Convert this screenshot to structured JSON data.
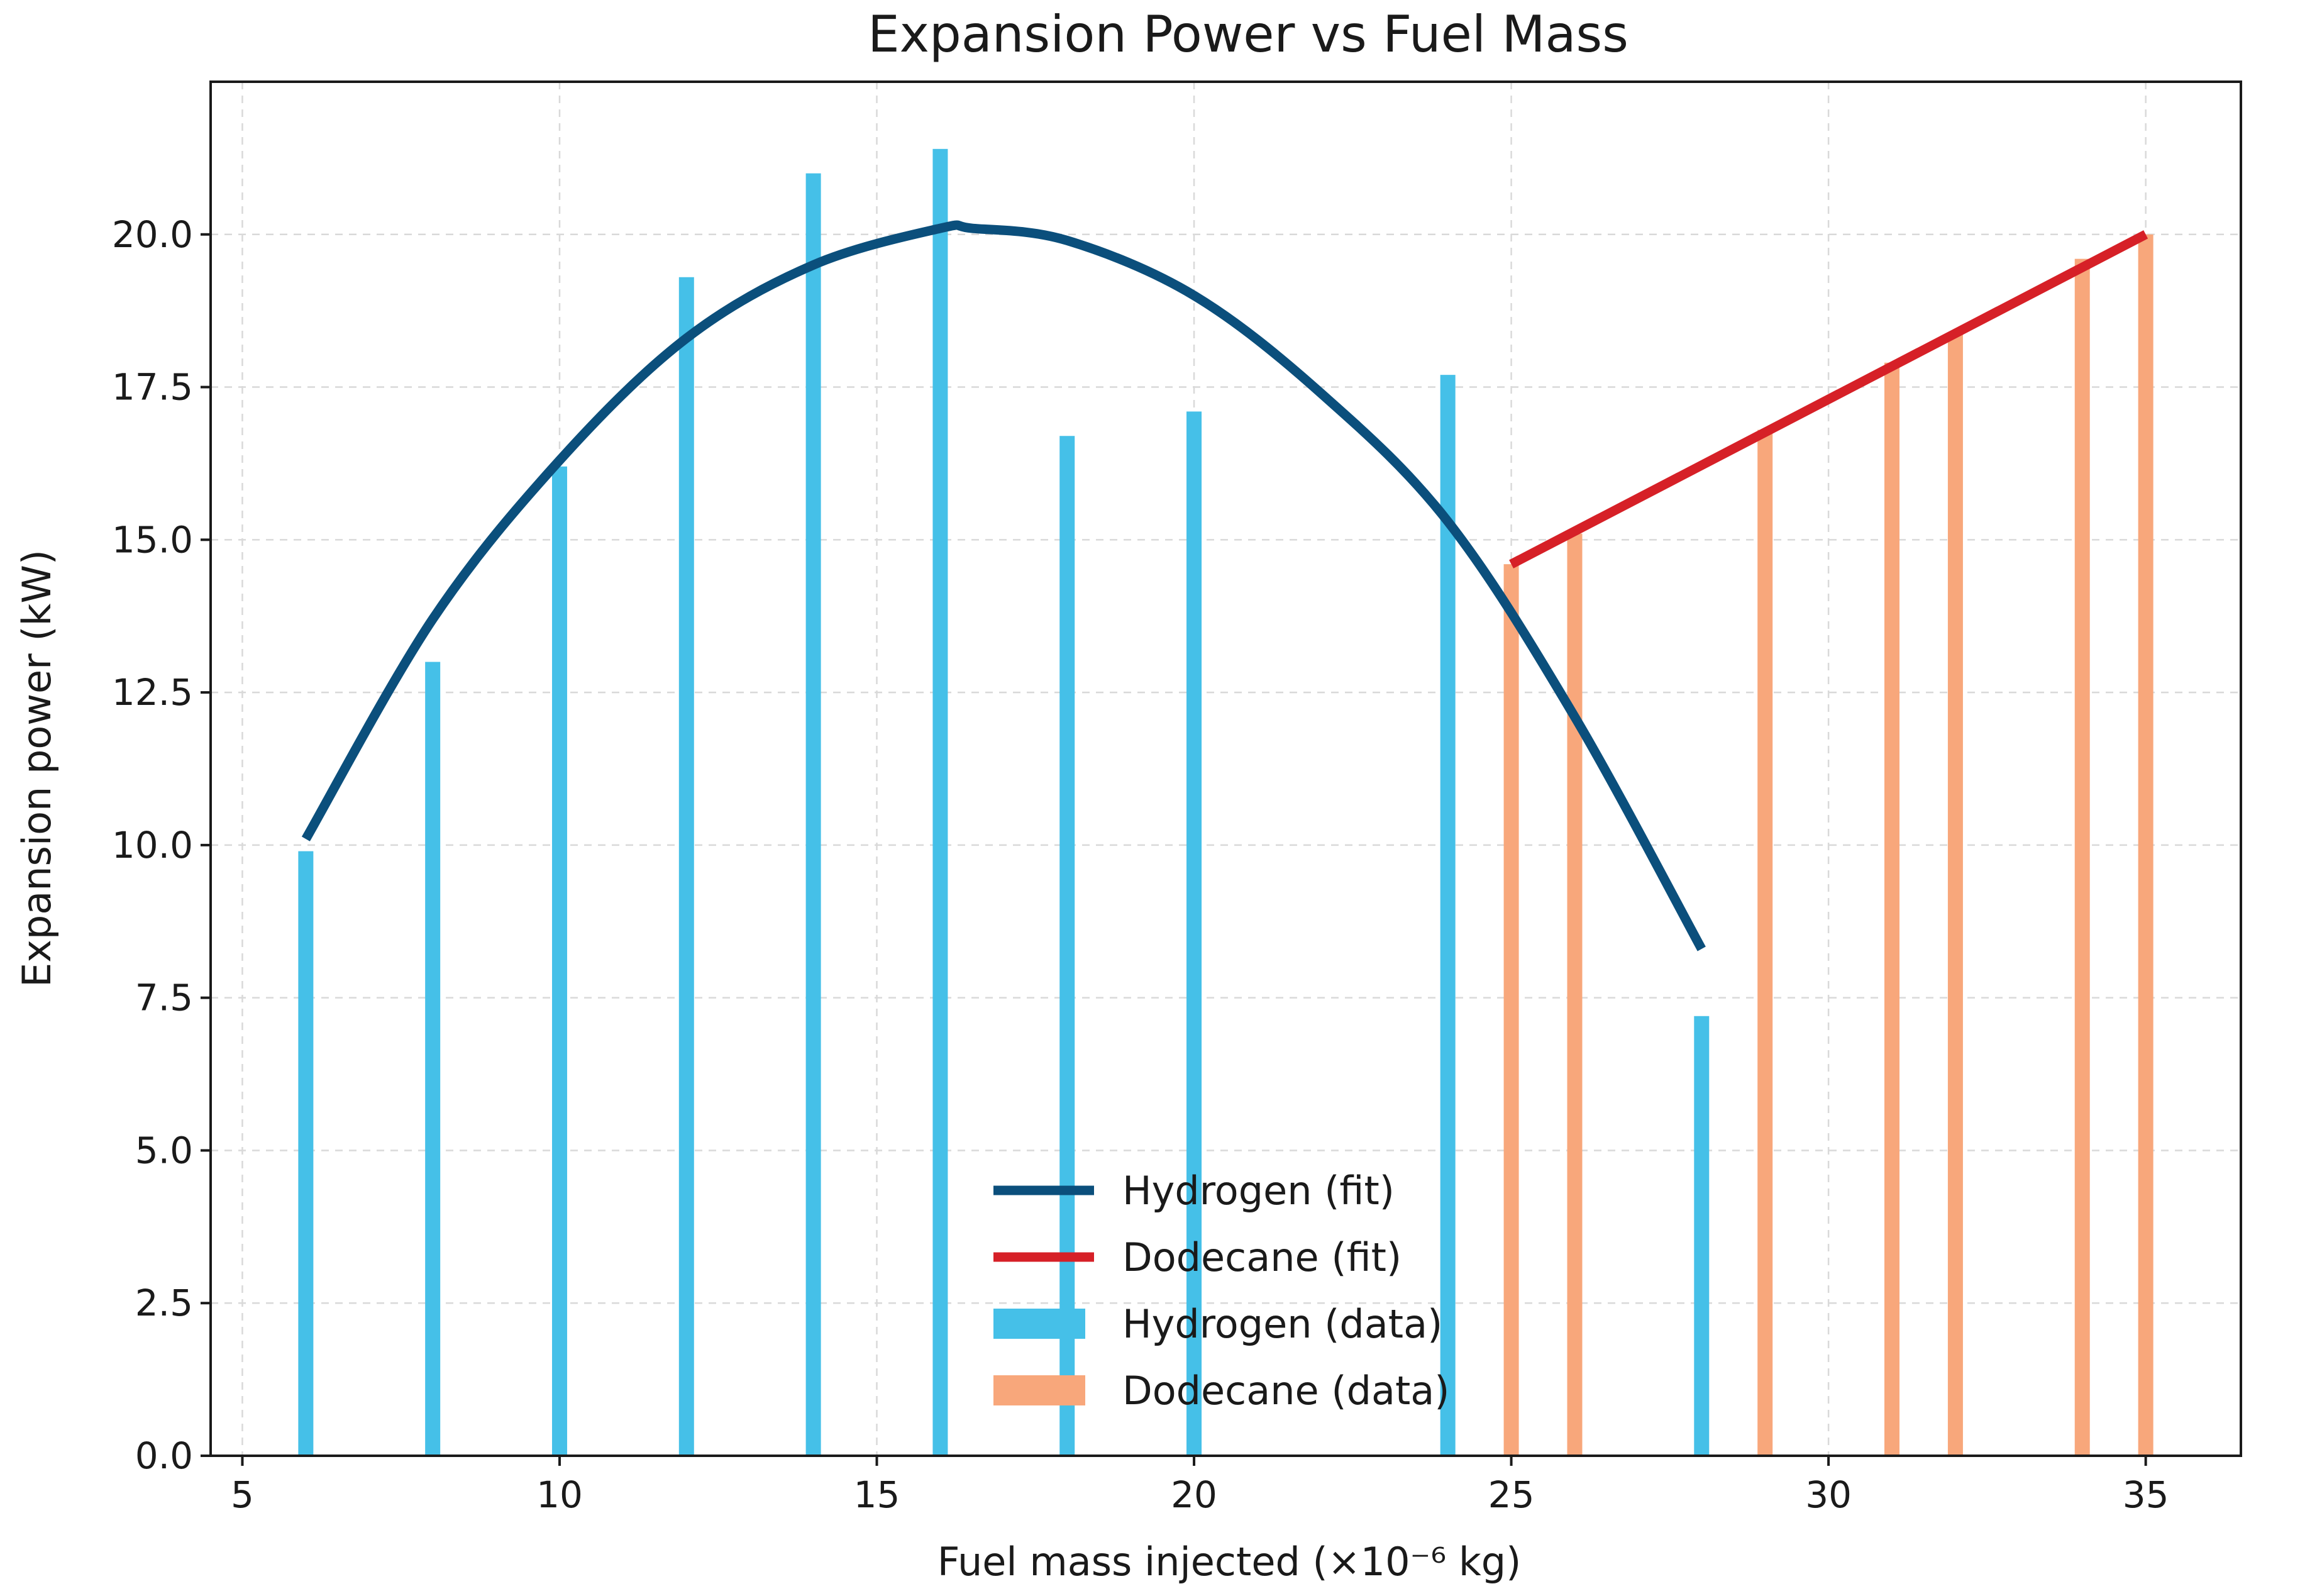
{
  "chart_data": {
    "type": "bar",
    "title": "Expansion Power vs Fuel Mass",
    "xlabel": "Fuel mass injected (×10⁻⁶ kg)",
    "ylabel": "Expansion power (kW)",
    "xlim": [
      4.5,
      36.5
    ],
    "ylim": [
      0,
      22.5
    ],
    "xticks": [
      5,
      10,
      15,
      20,
      25,
      30,
      35
    ],
    "xtick_labels": [
      "5",
      "10",
      "15",
      "20",
      "25",
      "30",
      "35"
    ],
    "yticks": [
      0,
      2.5,
      5,
      7.5,
      10,
      12.5,
      15,
      17.5,
      20
    ],
    "ytick_labels": [
      "0.0",
      "2.5",
      "5.0",
      "7.5",
      "10.0",
      "12.5",
      "15.0",
      "17.5",
      "20.0"
    ],
    "grid": true,
    "legend_position": "bottom-center",
    "bar_series": [
      {
        "name": "Hydrogen (data)",
        "color": "#45C0E8",
        "x": [
          6,
          8,
          10,
          12,
          14,
          16,
          18,
          20,
          24,
          28
        ],
        "values": [
          9.9,
          13.0,
          16.2,
          19.3,
          21.0,
          21.4,
          16.7,
          17.1,
          17.7,
          7.2
        ]
      },
      {
        "name": "Dodecane (data)",
        "color": "#F8A77B",
        "x": [
          25,
          26,
          29,
          31,
          32,
          34,
          35
        ],
        "values": [
          14.6,
          15.1,
          16.8,
          17.9,
          18.4,
          19.6,
          20.0
        ]
      }
    ],
    "line_series": [
      {
        "name": "Hydrogen (fit)",
        "color": "#0B4F7C",
        "x": [
          6,
          8,
          10,
          12,
          14,
          16,
          16.5,
          18,
          20,
          22,
          24,
          26,
          28
        ],
        "values": [
          10.1,
          13.7,
          16.3,
          18.3,
          19.5,
          20.1,
          20.1,
          19.9,
          19.0,
          17.4,
          15.3,
          12.1,
          8.3
        ]
      },
      {
        "name": "Dodecane (fit)",
        "color": "#D62027",
        "x": [
          25,
          35
        ],
        "values": [
          14.6,
          20.0
        ]
      }
    ],
    "legend": [
      {
        "label": "Hydrogen (fit)",
        "kind": "line",
        "color": "#0B4F7C"
      },
      {
        "label": "Dodecane (fit)",
        "kind": "line",
        "color": "#D62027"
      },
      {
        "label": "Hydrogen (data)",
        "kind": "bar",
        "color": "#45C0E8"
      },
      {
        "label": "Dodecane (data)",
        "kind": "bar",
        "color": "#F8A77B"
      }
    ]
  }
}
